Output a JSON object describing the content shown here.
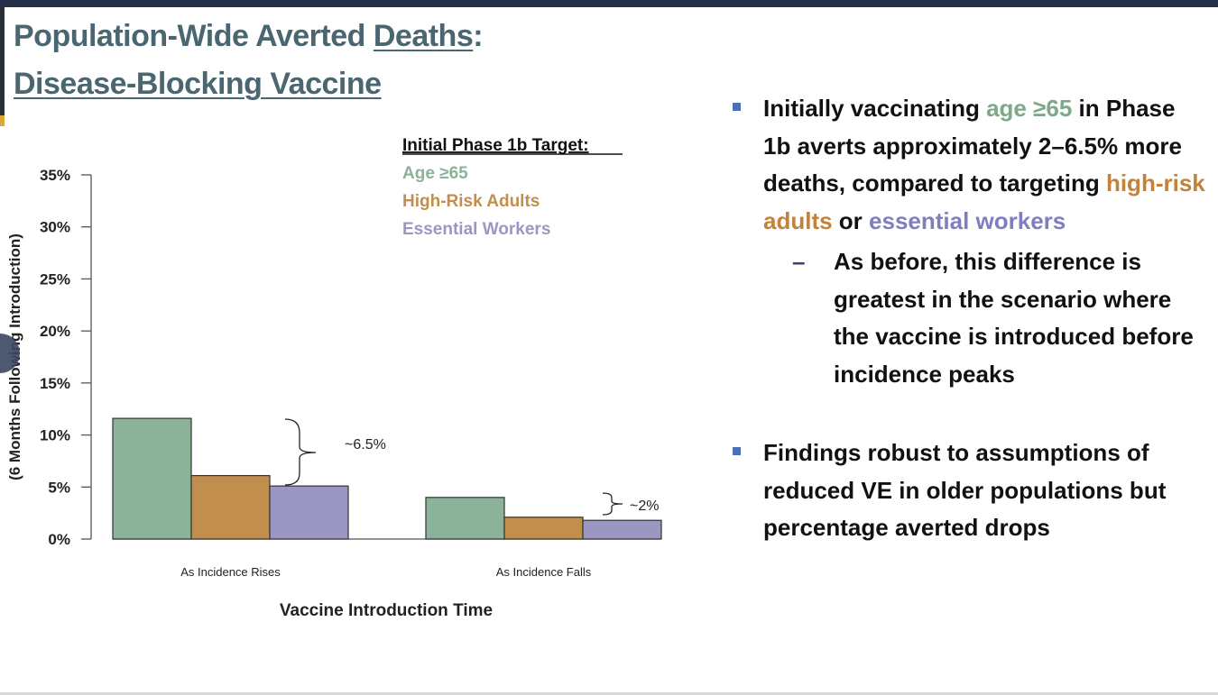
{
  "slide": {
    "title_part1": "Population-Wide Averted ",
    "title_underlined": "Deaths",
    "title_colon": ":",
    "title_line2": "Disease-Blocking Vaccine"
  },
  "bullets": {
    "b1_a": "Initially vaccinating ",
    "b1_age": "age ≥65",
    "b1_b": " in Phase 1b averts approximately 2–6.5% more deaths, compared to targeting ",
    "b1_hr": "high-risk adults",
    "b1_c": " or ",
    "b1_ew": "essential workers",
    "sub_dash": "–",
    "sub1": "As before, this difference is greatest in the scenario where the vaccine is introduced before incidence peaks",
    "b2": "Findings robust to assumptions of reduced VE in older populations but percentage averted drops"
  },
  "chart_data": {
    "type": "bar",
    "title": "",
    "legend_title": "Initial Phase 1b Target:",
    "legend_placement": "top-center",
    "xlabel": "Vaccine Introduction Time",
    "ylabel": "(6 Months Following Introduction)",
    "ylim": [
      0,
      35
    ],
    "yticks": [
      "0%",
      "5%",
      "10%",
      "15%",
      "20%",
      "25%",
      "30%",
      "35%"
    ],
    "ytick_values": [
      0,
      5,
      10,
      15,
      20,
      25,
      30,
      35
    ],
    "categories": [
      "As Incidence Rises",
      "As Incidence Falls"
    ],
    "series": [
      {
        "name": "Age ≥65",
        "color": "#8ab39a",
        "values": [
          11.6,
          4.0
        ]
      },
      {
        "name": "High-Risk Adults",
        "color": "#c18e4e",
        "values": [
          6.1,
          2.1
        ]
      },
      {
        "name": "Essential Workers",
        "color": "#9a98c2",
        "values": [
          5.1,
          1.8
        ]
      }
    ],
    "annotations": [
      "~6.5%",
      "~2%"
    ]
  }
}
